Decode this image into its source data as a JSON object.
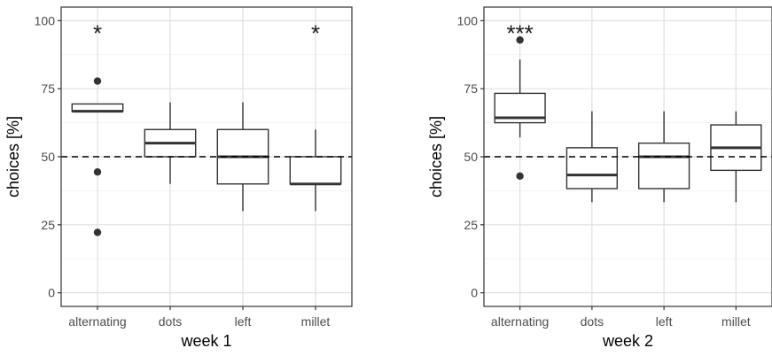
{
  "chart_data": [
    {
      "type": "box",
      "xlabel": "week 1",
      "ylabel": "choices [%]",
      "categories": [
        "alternating",
        "dots",
        "left",
        "millet"
      ],
      "yticks": [
        0,
        25,
        50,
        75,
        100
      ],
      "ylim": [
        -5,
        105
      ],
      "grid": true,
      "reference_line": 50,
      "boxes": [
        {
          "category": "alternating",
          "min": 66.7,
          "q1": 66.7,
          "median": 66.7,
          "q3": 69.4,
          "max": 69.4,
          "outliers": [
            77.8,
            44.4,
            22.2
          ],
          "significance": "*"
        },
        {
          "category": "dots",
          "min": 40,
          "q1": 50,
          "median": 55,
          "q3": 60,
          "max": 70,
          "outliers": [],
          "significance": ""
        },
        {
          "category": "left",
          "min": 30,
          "q1": 40,
          "median": 50,
          "q3": 60,
          "max": 70,
          "outliers": [],
          "significance": ""
        },
        {
          "category": "millet",
          "min": 30,
          "q1": 40,
          "median": 40,
          "q3": 50,
          "max": 60,
          "outliers": [],
          "significance": "*"
        }
      ]
    },
    {
      "type": "box",
      "xlabel": "week 2",
      "ylabel": "choices [%]",
      "categories": [
        "alternating",
        "dots",
        "left",
        "millet"
      ],
      "yticks": [
        0,
        25,
        50,
        75,
        100
      ],
      "ylim": [
        -5,
        105
      ],
      "grid": true,
      "reference_line": 50,
      "boxes": [
        {
          "category": "alternating",
          "min": 57.1,
          "q1": 62.5,
          "median": 64.3,
          "q3": 73.3,
          "max": 85.7,
          "outliers": [
            92.9,
            42.9
          ],
          "significance": "***"
        },
        {
          "category": "dots",
          "min": 33.3,
          "q1": 38.3,
          "median": 43.3,
          "q3": 53.3,
          "max": 66.7,
          "outliers": [],
          "significance": ""
        },
        {
          "category": "left",
          "min": 33.3,
          "q1": 38.3,
          "median": 50,
          "q3": 55,
          "max": 66.7,
          "outliers": [],
          "significance": ""
        },
        {
          "category": "millet",
          "min": 33.3,
          "q1": 45,
          "median": 53.3,
          "q3": 61.7,
          "max": 66.7,
          "outliers": [],
          "significance": ""
        }
      ]
    }
  ]
}
